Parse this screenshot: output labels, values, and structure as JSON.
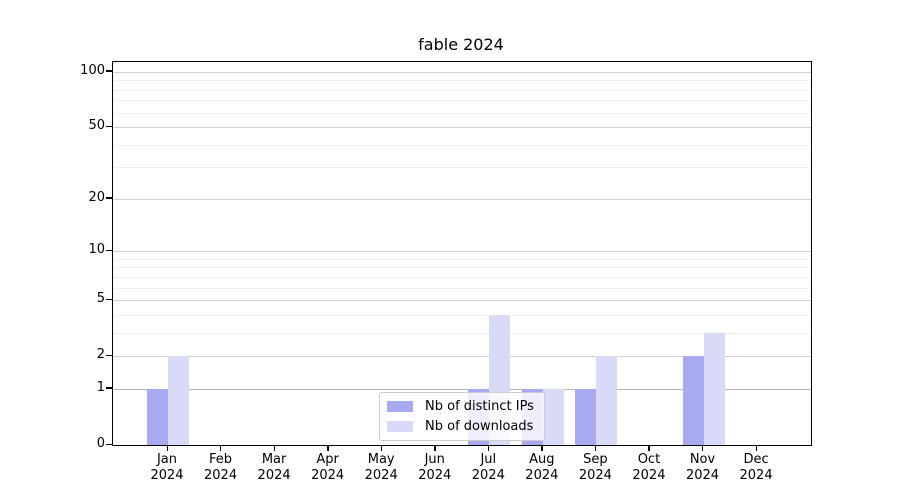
{
  "title": "fable 2024",
  "chart_data": {
    "type": "bar",
    "title": "fable 2024",
    "categories": [
      "Jan 2024",
      "Feb 2024",
      "Mar 2024",
      "Apr 2024",
      "May 2024",
      "Jun 2024",
      "Jul 2024",
      "Aug 2024",
      "Sep 2024",
      "Oct 2024",
      "Nov 2024",
      "Dec 2024"
    ],
    "series": [
      {
        "name": "Nb of distinct IPs",
        "color": "#a9a9f2",
        "values": [
          1,
          0,
          0,
          0,
          0,
          0,
          1,
          1,
          1,
          0,
          2,
          0
        ]
      },
      {
        "name": "Nb of downloads",
        "color": "#d9d9f8",
        "values": [
          2,
          0,
          0,
          0,
          0,
          0,
          4,
          1,
          2,
          0,
          3,
          0
        ]
      }
    ],
    "xlabel": "",
    "ylabel": "",
    "y_scale": "log1p",
    "ylim": [
      0,
      113
    ],
    "y_major_ticks": [
      0,
      1,
      2,
      5,
      10,
      20,
      50,
      100
    ],
    "y_minor_gridlines": [
      3,
      4,
      6,
      7,
      8,
      9,
      30,
      40,
      60,
      70,
      80,
      90
    ],
    "grid": true,
    "legend_position": "inside lower center",
    "colors": {
      "axis": "#000000",
      "major_grid": "#d2d2d2",
      "baseline_grid": "#b5b5b5",
      "minor_grid": "#efefef"
    }
  }
}
